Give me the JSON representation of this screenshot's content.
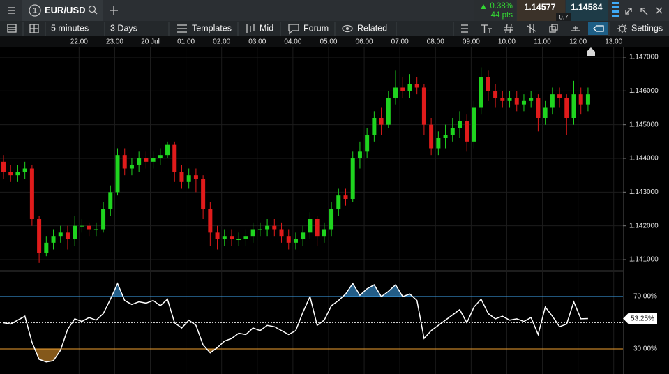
{
  "header": {
    "tab_number": "1",
    "symbol": "EUR/USD",
    "change_pct": "0.38%",
    "change_pts": "44 pts",
    "bid": "1.14577",
    "spread": "0.7",
    "ask": "1.14584"
  },
  "toolbar": {
    "interval": "5 minutes",
    "range": "3 Days",
    "templates": "Templates",
    "price": "Mid",
    "forum": "Forum",
    "related": "Related",
    "settings": "Settings"
  },
  "chart_data": [
    {
      "type": "candlestick",
      "up_color": "#1fd41f",
      "down_color": "#e01b1b",
      "grid": true,
      "xlim": [
        -0.49,
        86.9
      ],
      "xticks": [
        {
          "value": 10.6,
          "label": "22:00"
        },
        {
          "value": 15.6,
          "label": "23:00"
        },
        {
          "value": 20.6,
          "label": "20 Jul"
        },
        {
          "value": 25.6,
          "label": "01:00"
        },
        {
          "value": 30.6,
          "label": "02:00"
        },
        {
          "value": 35.6,
          "label": "03:00"
        },
        {
          "value": 40.6,
          "label": "04:00"
        },
        {
          "value": 45.6,
          "label": "05:00"
        },
        {
          "value": 50.6,
          "label": "06:00"
        },
        {
          "value": 55.6,
          "label": "07:00"
        },
        {
          "value": 60.6,
          "label": "08:00"
        },
        {
          "value": 65.6,
          "label": "09:00"
        },
        {
          "value": 70.6,
          "label": "10:00"
        },
        {
          "value": 75.6,
          "label": "11:00"
        },
        {
          "value": 80.6,
          "label": "12:00"
        },
        {
          "value": 85.6,
          "label": "13:00"
        }
      ],
      "ylim": [
        1.14069,
        1.14731
      ],
      "yticks": [
        {
          "value": 1.147,
          "label": "1.147000"
        },
        {
          "value": 1.146,
          "label": "1.146000"
        },
        {
          "value": 1.145,
          "label": "1.145000"
        },
        {
          "value": 1.144,
          "label": "1.144000"
        },
        {
          "value": 1.143,
          "label": "1.143000"
        },
        {
          "value": 1.142,
          "label": "1.142000"
        },
        {
          "value": 1.141,
          "label": "1.141000"
        }
      ],
      "open": [
        1.1439,
        1.1436,
        1.1435,
        1.1436,
        1.1437,
        1.1422,
        1.1412,
        1.1415,
        1.1417,
        1.1418,
        1.1416,
        1.142,
        1.142,
        1.1419,
        1.1419,
        1.1425,
        1.143,
        1.1441,
        1.1437,
        1.1438,
        1.144,
        1.1439,
        1.144,
        1.1441,
        1.1444,
        1.1436,
        1.1433,
        1.1435,
        1.1434,
        1.1425,
        1.1418,
        1.1416,
        1.1417,
        1.1416,
        1.1416,
        1.1417,
        1.1419,
        1.1419,
        1.142,
        1.1419,
        1.1417,
        1.1415,
        1.1416,
        1.1418,
        1.1422,
        1.1417,
        1.1419,
        1.1425,
        1.1429,
        1.1428,
        1.144,
        1.1442,
        1.1447,
        1.1452,
        1.145,
        1.1458,
        1.1461,
        1.146,
        1.1462,
        1.1461,
        1.145,
        1.1443,
        1.1446,
        1.1447,
        1.1449,
        1.1451,
        1.1445,
        1.1455,
        1.1464,
        1.146,
        1.1458,
        1.1457,
        1.1458,
        1.1456,
        1.1457,
        1.1458,
        1.1452,
        1.1455,
        1.1459,
        1.1458,
        1.1452,
        1.1459,
        1.1456
      ],
      "high": [
        1.1441,
        1.1438,
        1.1438,
        1.1439,
        1.1438,
        1.1423,
        1.1417,
        1.1419,
        1.142,
        1.142,
        1.1423,
        1.1422,
        1.1421,
        1.1421,
        1.1427,
        1.1432,
        1.1443,
        1.1443,
        1.144,
        1.1442,
        1.1442,
        1.1442,
        1.1443,
        1.1445,
        1.1445,
        1.1438,
        1.1437,
        1.1437,
        1.1435,
        1.1427,
        1.142,
        1.1419,
        1.1419,
        1.1418,
        1.1419,
        1.1421,
        1.1421,
        1.1422,
        1.1422,
        1.1421,
        1.1419,
        1.1418,
        1.142,
        1.1424,
        1.1423,
        1.1421,
        1.1427,
        1.1431,
        1.1431,
        1.1442,
        1.1445,
        1.1449,
        1.1454,
        1.1455,
        1.146,
        1.1466,
        1.1464,
        1.1465,
        1.1464,
        1.1462,
        1.1452,
        1.1448,
        1.145,
        1.1452,
        1.1454,
        1.1453,
        1.1457,
        1.1467,
        1.1466,
        1.1462,
        1.146,
        1.146,
        1.146,
        1.1459,
        1.146,
        1.1459,
        1.1457,
        1.1461,
        1.1461,
        1.1459,
        1.1463,
        1.1461,
        1.1461
      ],
      "low": [
        1.1434,
        1.1433,
        1.1433,
        1.1434,
        1.142,
        1.1409,
        1.1411,
        1.1413,
        1.1415,
        1.1413,
        1.1414,
        1.1418,
        1.1417,
        1.1417,
        1.1418,
        1.1423,
        1.1429,
        1.1435,
        1.1435,
        1.1436,
        1.1437,
        1.1437,
        1.1438,
        1.144,
        1.1433,
        1.1431,
        1.1431,
        1.143,
        1.1422,
        1.1414,
        1.1413,
        1.1414,
        1.1414,
        1.1414,
        1.1414,
        1.1415,
        1.1417,
        1.1417,
        1.1417,
        1.1415,
        1.1413,
        1.1413,
        1.1414,
        1.1416,
        1.1414,
        1.1415,
        1.1417,
        1.1423,
        1.1426,
        1.1427,
        1.1437,
        1.144,
        1.1445,
        1.1447,
        1.1449,
        1.1456,
        1.1458,
        1.1458,
        1.1459,
        1.1447,
        1.1441,
        1.1441,
        1.1443,
        1.1445,
        1.1446,
        1.1442,
        1.1443,
        1.1453,
        1.1457,
        1.1455,
        1.1455,
        1.1455,
        1.1454,
        1.1454,
        1.1455,
        1.1448,
        1.145,
        1.1453,
        1.1455,
        1.1447,
        1.145,
        1.1453,
        1.1454
      ],
      "close": [
        1.1436,
        1.1435,
        1.1436,
        1.1437,
        1.1422,
        1.1412,
        1.1415,
        1.1417,
        1.1418,
        1.1416,
        1.142,
        1.142,
        1.1419,
        1.1419,
        1.1425,
        1.143,
        1.1441,
        1.1437,
        1.1438,
        1.144,
        1.1439,
        1.144,
        1.1441,
        1.1444,
        1.1436,
        1.1433,
        1.1435,
        1.1434,
        1.1425,
        1.1418,
        1.1416,
        1.1417,
        1.1416,
        1.1416,
        1.1417,
        1.1419,
        1.1419,
        1.142,
        1.1419,
        1.1417,
        1.1415,
        1.1416,
        1.1418,
        1.1422,
        1.1417,
        1.1419,
        1.1425,
        1.1429,
        1.1428,
        1.144,
        1.1442,
        1.1447,
        1.1452,
        1.145,
        1.1458,
        1.1461,
        1.146,
        1.1462,
        1.1461,
        1.145,
        1.1443,
        1.1446,
        1.1447,
        1.1449,
        1.1451,
        1.1445,
        1.1455,
        1.1464,
        1.146,
        1.1458,
        1.1457,
        1.1458,
        1.1456,
        1.1457,
        1.1458,
        1.1452,
        1.1455,
        1.1459,
        1.1458,
        1.1452,
        1.1459,
        1.1456,
        1.1459
      ]
    },
    {
      "type": "line",
      "color": "#ffffff",
      "ylim": [
        10.8,
        88.7
      ],
      "yticks": [
        {
          "value": 70,
          "label": "70.00%"
        },
        {
          "value": 50,
          "label": "50.00%"
        },
        {
          "value": 30,
          "label": "30.00%"
        }
      ],
      "tick_colors": [
        "#3fa9f5",
        "#d0d0d0",
        "#f0a030"
      ],
      "tick_dashed": [
        false,
        true,
        false
      ],
      "values": [
        50,
        49,
        52,
        55,
        35,
        22,
        20,
        21,
        29,
        45,
        53,
        51,
        54,
        52,
        57,
        68,
        80,
        67,
        64,
        66,
        65,
        67,
        63,
        68,
        50,
        46,
        52,
        48,
        33,
        27,
        31,
        36,
        38,
        42,
        41,
        46,
        44,
        48,
        47,
        44,
        41,
        44,
        58,
        70,
        48,
        52,
        63,
        67,
        72,
        80,
        71,
        76,
        79,
        70,
        74,
        79,
        70,
        72,
        67,
        38,
        44,
        48,
        52,
        56,
        60,
        50,
        62,
        68,
        57,
        53,
        55,
        52,
        53,
        51,
        54,
        41,
        62,
        55,
        47,
        49,
        66,
        53,
        53.25
      ],
      "current": {
        "value": 53.25,
        "label": "53.25%"
      }
    }
  ]
}
